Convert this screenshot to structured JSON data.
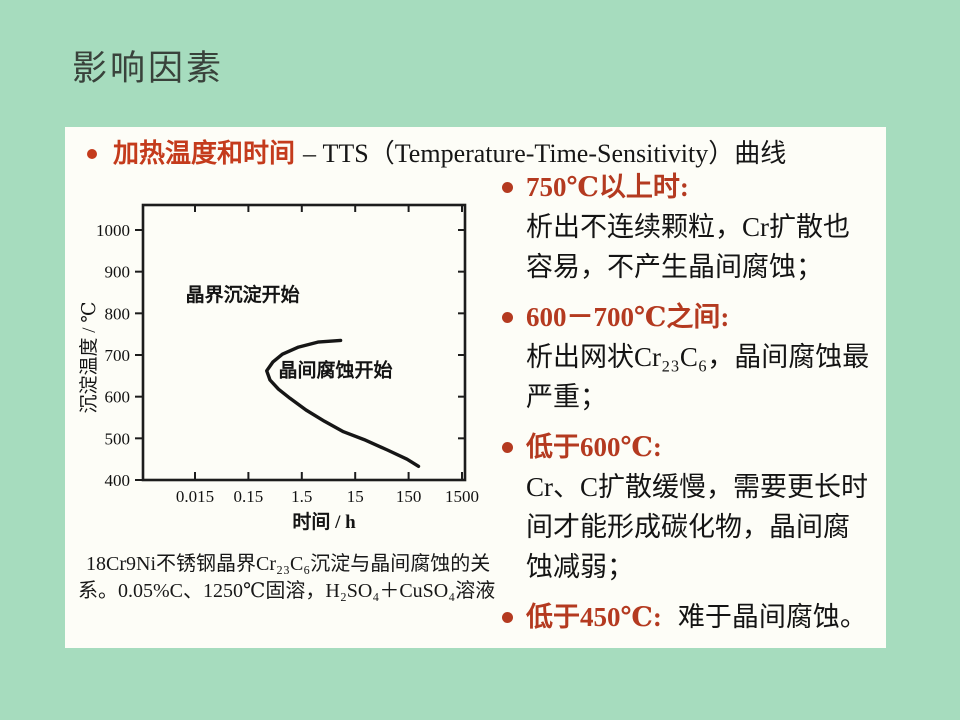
{
  "slide": {
    "title": "影响因素",
    "colors": {
      "background": "#a6dcbe",
      "panel": "#fdfdf7",
      "accent_red": "#c43b1c",
      "bullet_red": "#b43a20",
      "text": "#141414"
    }
  },
  "heading": {
    "red": "加热温度和时间",
    "rest": "– TTS（Temperature-Time-Sensitivity）曲线"
  },
  "chart_data": {
    "type": "line",
    "xlabel": "时间 /  h",
    "ylabel": "沉淀温度 / ℃",
    "xscale": "log",
    "x_ticks": [
      "0.015",
      "0.15",
      "1.5",
      "15",
      "150",
      "1500"
    ],
    "y_ticks": [
      400,
      500,
      600,
      700,
      800,
      900,
      1000
    ],
    "ylim": [
      400,
      1000
    ],
    "xlim": [
      0.0016,
      1700
    ],
    "grid": false,
    "legend": false,
    "annotations": [
      {
        "text": "晶界沉淀开始",
        "t": 0.01,
        "temp": 830
      },
      {
        "text": "晶间腐蚀开始",
        "t": 0.55,
        "temp": 648
      }
    ],
    "series": [
      {
        "name": "晶间腐蚀开始C曲线",
        "points": [
          [
            8,
            735
          ],
          [
            3,
            731
          ],
          [
            1.3,
            719
          ],
          [
            0.65,
            702
          ],
          [
            0.43,
            683
          ],
          [
            0.33,
            662
          ],
          [
            0.38,
            640
          ],
          [
            0.55,
            618
          ],
          [
            0.9,
            596
          ],
          [
            1.8,
            568
          ],
          [
            4,
            541
          ],
          [
            9,
            516
          ],
          [
            22,
            497
          ],
          [
            60,
            472
          ],
          [
            140,
            450
          ],
          [
            230,
            433
          ]
        ]
      }
    ],
    "caption_lines": [
      "18Cr9Ni不锈钢晶界Cr₂₃C₆沉淀与晶间腐蚀的关",
      "系。0.05%C、1250℃固溶，H₂SO₄＋CuSO₄溶液"
    ]
  },
  "right_column": {
    "items": [
      {
        "heading": "750℃以上时:",
        "body": "析出不连续颗粒，Cr扩散也容易，不产生晶间腐蚀；"
      },
      {
        "heading": "600－700℃之间:",
        "body": "析出网状Cr₂₃C₆，晶间腐蚀最严重；"
      },
      {
        "heading": "低于600℃:",
        "body": "Cr、C扩散缓慢，需要更长时间才能形成碳化物，晶间腐蚀减弱；"
      },
      {
        "heading": "低于450℃:",
        "body": "难于晶间腐蚀。"
      }
    ]
  }
}
